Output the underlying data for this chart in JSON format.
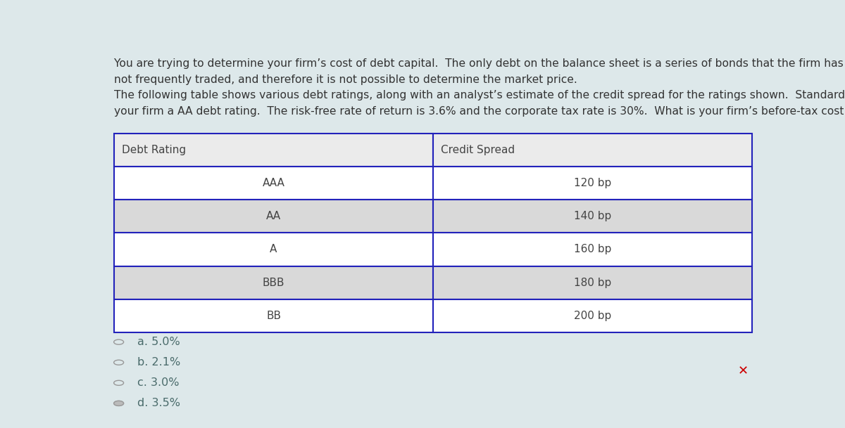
{
  "background_color": "#dde8ea",
  "paragraph1": "You are trying to determine your firm’s cost of debt capital.  The only debt on the balance sheet is a series of bonds that the firm has issued.  The bonds are\nnot frequently traded, and therefore it is not possible to determine the market price.",
  "paragraph2": "The following table shows various debt ratings, along with an analyst’s estimate of the credit spread for the ratings shown.  Standard and Poor’s have given\nyour firm a AA debt rating.  The risk-free rate of return is 3.6% and the corporate tax rate is 30%.  What is your firm’s before-tax cost of debt capital?",
  "col_headers": [
    "Debt Rating",
    "Credit Spread"
  ],
  "table_rows": [
    [
      "AAA",
      "120 bp"
    ],
    [
      "AA",
      "140 bp"
    ],
    [
      "A",
      "160 bp"
    ],
    [
      "BBB",
      "180 bp"
    ],
    [
      "BB",
      "200 bp"
    ]
  ],
  "row_bg": [
    "#ffffff",
    "#d9d9d9",
    "#ffffff",
    "#d9d9d9",
    "#ffffff"
  ],
  "header_bg": "#ebebeb",
  "table_border_color": "#2222bb",
  "table_text_color": "#444444",
  "options": [
    {
      "label": "a. 5.0%",
      "selected": false
    },
    {
      "label": "b. 2.1%",
      "selected": false
    },
    {
      "label": "c. 3.0%",
      "selected": false
    },
    {
      "label": "d. 3.5%",
      "selected": true
    }
  ],
  "option_text_color": "#4a6b6b",
  "radio_outline_color": "#999999",
  "radio_fill_color": "#bbbbbb",
  "x_mark_color": "#cc0000",
  "text_color": "#333333",
  "font_size_para": 11.2,
  "font_size_table": 11.0,
  "font_size_options": 11.5
}
